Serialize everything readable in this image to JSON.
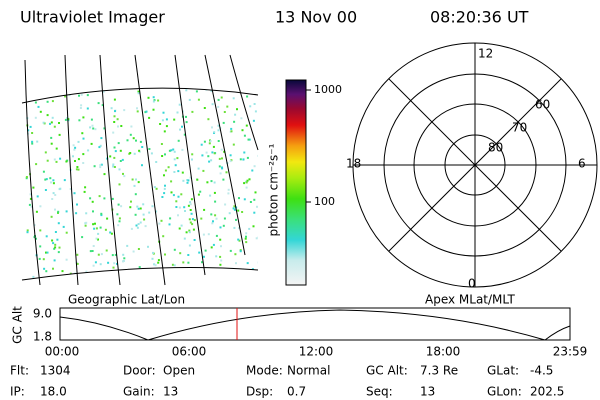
{
  "header": {
    "instrument": "Ultraviolet Imager",
    "date": "13 Nov 00",
    "time": "08:20:36 UT"
  },
  "colorbar": {
    "unit": "photon cm⁻²s⁻¹",
    "ticks": [
      "1000",
      "100"
    ]
  },
  "polar": {
    "mlt": [
      "12",
      "18",
      "6",
      "0"
    ],
    "mlat": [
      "60",
      "70",
      "80"
    ]
  },
  "panel_labels": {
    "left": "Geographic Lat/Lon",
    "right": "Apex MLat/MLT"
  },
  "timeline": {
    "axis_label": "GC Alt",
    "y_labels": [
      "9.0",
      "1.8"
    ],
    "times": [
      "00:00",
      "06:00",
      "12:00",
      "18:00",
      "23:59"
    ]
  },
  "footer": {
    "rows": [
      [
        {
          "label": "Flt:",
          "value": "1304"
        },
        {
          "label": "Door:",
          "value": "Open"
        },
        {
          "label": "Mode:",
          "value": "Normal"
        },
        {
          "label": "GC Alt:",
          "value": "7.3 Re"
        },
        {
          "label": "GLat:",
          "value": "-4.5"
        }
      ],
      [
        {
          "label": "IP:",
          "value": "18.0"
        },
        {
          "label": "Gain:",
          "value": "13"
        },
        {
          "label": "Dsp:",
          "value": "0.7"
        },
        {
          "label": "Seq:",
          "value": "13"
        },
        {
          "label": "GLon:",
          "value": "202.5"
        }
      ]
    ]
  }
}
